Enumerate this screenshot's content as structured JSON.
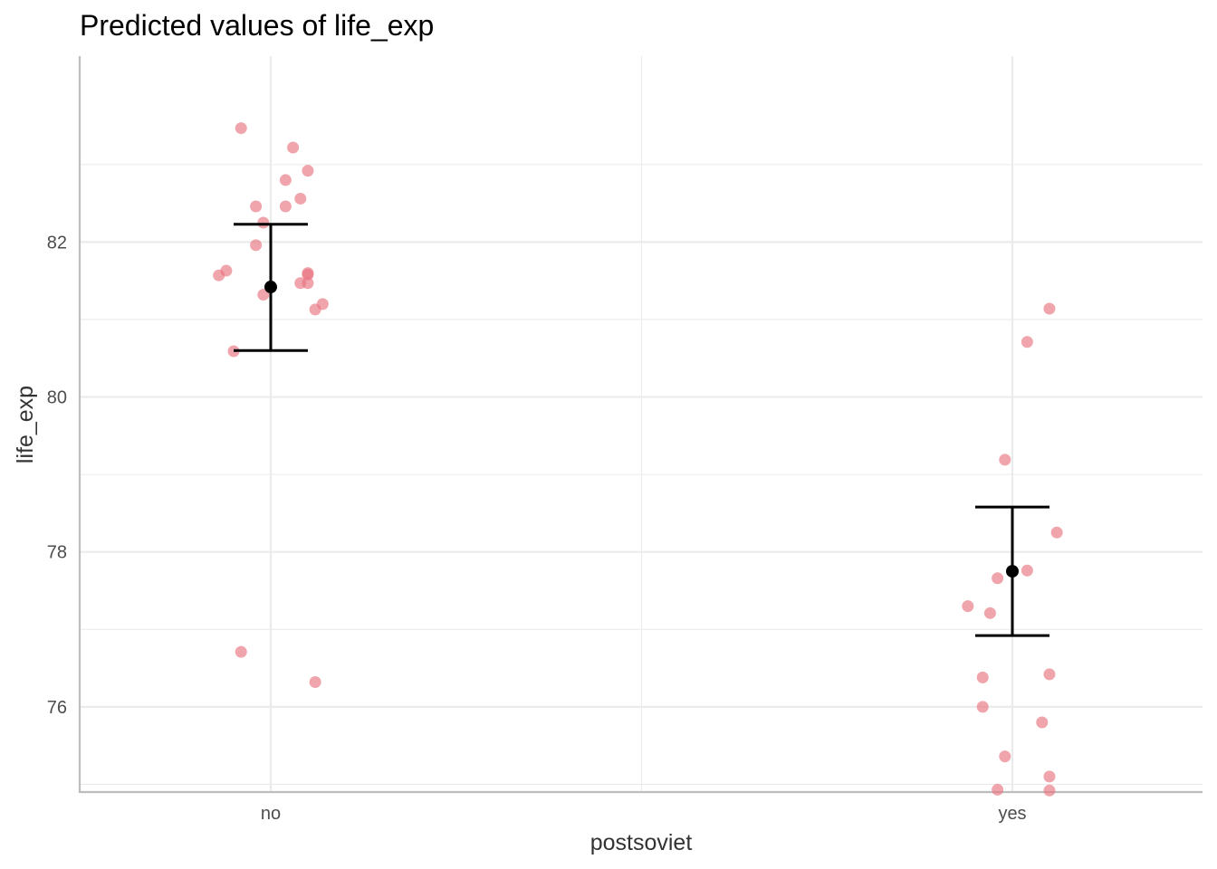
{
  "chart_data": {
    "type": "scatter",
    "title": "Predicted values of life_exp",
    "xlabel": "postsoviet",
    "ylabel": "life_exp",
    "categories": [
      "no",
      "yes"
    ],
    "ylim": [
      74.9,
      84.4
    ],
    "y_ticks": [
      76,
      78,
      80,
      82
    ],
    "y_tick_labels": [
      "76",
      "78",
      "80",
      "82"
    ],
    "grid": true,
    "colors": {
      "points": "#e8737f",
      "estimate": "#000000",
      "grid": "#ebebeb",
      "axis": "#bdbdbd"
    },
    "series": [
      {
        "category": "no",
        "predicted": 81.42,
        "ci": [
          80.6,
          82.23
        ],
        "points": [
          {
            "x": -0.04,
            "y": 83.47
          },
          {
            "x": 0.03,
            "y": 83.22
          },
          {
            "x": 0.05,
            "y": 82.92
          },
          {
            "x": 0.02,
            "y": 82.8
          },
          {
            "x": 0.04,
            "y": 82.56
          },
          {
            "x": -0.02,
            "y": 82.46
          },
          {
            "x": 0.02,
            "y": 82.46
          },
          {
            "x": -0.01,
            "y": 82.25
          },
          {
            "x": -0.02,
            "y": 81.96
          },
          {
            "x": -0.06,
            "y": 81.63
          },
          {
            "x": -0.07,
            "y": 81.57
          },
          {
            "x": 0.05,
            "y": 81.58
          },
          {
            "x": 0.05,
            "y": 81.6
          },
          {
            "x": 0.05,
            "y": 81.47
          },
          {
            "x": 0.04,
            "y": 81.47
          },
          {
            "x": -0.01,
            "y": 81.32
          },
          {
            "x": 0.07,
            "y": 81.2
          },
          {
            "x": 0.06,
            "y": 81.13
          },
          {
            "x": -0.05,
            "y": 80.59
          },
          {
            "x": -0.04,
            "y": 76.71
          },
          {
            "x": 0.06,
            "y": 76.32
          }
        ]
      },
      {
        "category": "yes",
        "predicted": 77.75,
        "ci": [
          76.92,
          78.58
        ],
        "points": [
          {
            "x": 0.05,
            "y": 81.14
          },
          {
            "x": 0.02,
            "y": 80.71
          },
          {
            "x": -0.01,
            "y": 79.19
          },
          {
            "x": 0.06,
            "y": 78.25
          },
          {
            "x": 0.02,
            "y": 77.76
          },
          {
            "x": -0.02,
            "y": 77.66
          },
          {
            "x": -0.06,
            "y": 77.3
          },
          {
            "x": -0.03,
            "y": 77.21
          },
          {
            "x": 0.05,
            "y": 76.42
          },
          {
            "x": -0.04,
            "y": 76.38
          },
          {
            "x": -0.04,
            "y": 76.0
          },
          {
            "x": 0.04,
            "y": 75.8
          },
          {
            "x": -0.01,
            "y": 75.36
          },
          {
            "x": 0.05,
            "y": 75.1
          },
          {
            "x": -0.02,
            "y": 74.93
          },
          {
            "x": 0.05,
            "y": 74.92
          }
        ]
      }
    ]
  }
}
